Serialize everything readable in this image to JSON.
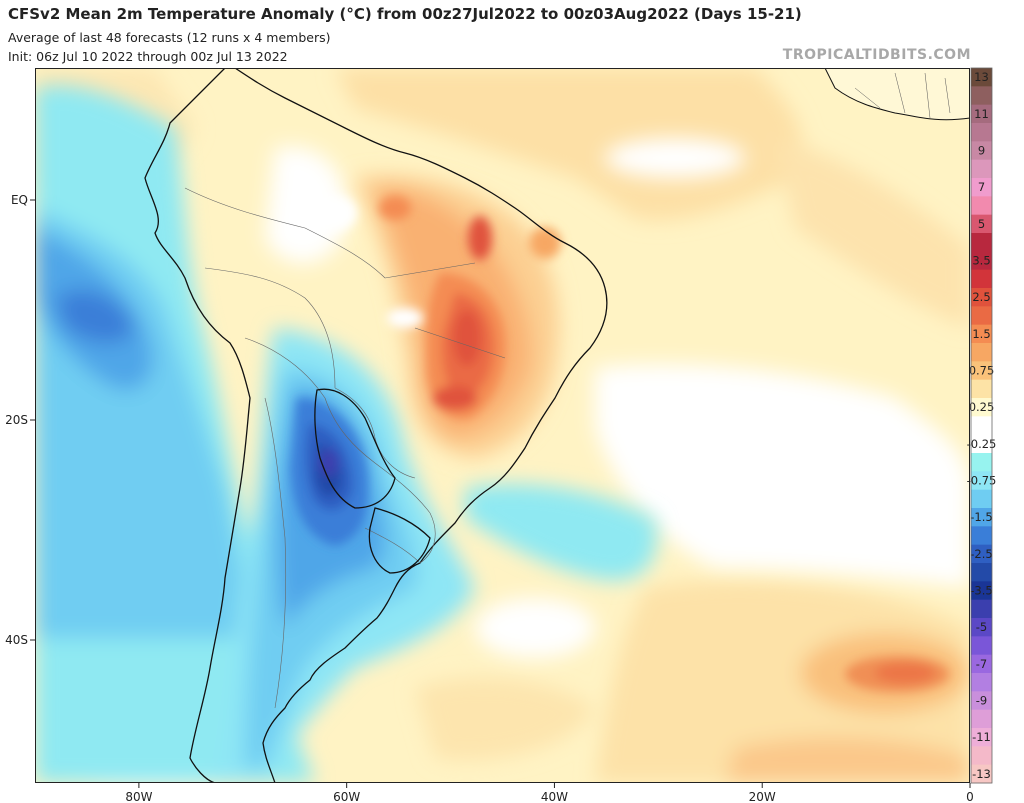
{
  "header": {
    "title": "CFSv2 Mean 2m Temperature Anomaly (°C) from 00z27Jul2022 to 00z03Aug2022 (Days 15-21)",
    "subtitle1": "Average of last 48 forecasts (12 runs x 4 members)",
    "subtitle2": "Init: 06z Jul 10 2022 through 00z Jul 13 2022",
    "brand": "TROPICALTIDBITS.COM"
  },
  "map": {
    "lon_range": [
      -90,
      0
    ],
    "lat_range": [
      12,
      -53
    ],
    "lat_ticks": [
      {
        "lat": 0,
        "label": "EQ"
      },
      {
        "lat": -20,
        "label": "20S"
      },
      {
        "lat": -40,
        "label": "40S"
      }
    ],
    "lon_ticks": [
      {
        "lon": -80,
        "label": "80W"
      },
      {
        "lon": -60,
        "label": "60W"
      },
      {
        "lon": -40,
        "label": "40W"
      },
      {
        "lon": -20,
        "label": "20W"
      },
      {
        "lon": 0,
        "label": "0"
      }
    ]
  },
  "colorbar": {
    "levels": [
      {
        "label": "13",
        "color": "#6b4a3a"
      },
      {
        "label": "",
        "color": "#8e5f5f"
      },
      {
        "label": "11",
        "color": "#a56b7e"
      },
      {
        "label": "",
        "color": "#b77891"
      },
      {
        "label": "9",
        "color": "#c888a4"
      },
      {
        "label": "",
        "color": "#dc97bb"
      },
      {
        "label": "7",
        "color": "#f09ccd"
      },
      {
        "label": "",
        "color": "#f28aae"
      },
      {
        "label": "5",
        "color": "#d9576f"
      },
      {
        "label": "",
        "color": "#b8283e"
      },
      {
        "label": "3.5",
        "color": "#b8283e"
      },
      {
        "label": "",
        "color": "#d2343a"
      },
      {
        "label": "2.5",
        "color": "#e0523c"
      },
      {
        "label": "",
        "color": "#ea6a44"
      },
      {
        "label": "1.5",
        "color": "#f48c52"
      },
      {
        "label": "",
        "color": "#f7a763"
      },
      {
        "label": "0.75",
        "color": "#fac27a"
      },
      {
        "label": "",
        "color": "#fde3a6"
      },
      {
        "label": "0.25",
        "color": "#fffad0"
      },
      {
        "label": "",
        "color": "#ffffff"
      },
      {
        "label": "-0.25",
        "color": "#ffffff"
      },
      {
        "label": "",
        "color": "#97f3ef"
      },
      {
        "label": "-0.75",
        "color": "#8ee6f5"
      },
      {
        "label": "",
        "color": "#6fcdf2"
      },
      {
        "label": "-1.5",
        "color": "#50a6e8"
      },
      {
        "label": "",
        "color": "#3a7ed8"
      },
      {
        "label": "-2.5",
        "color": "#2f5fc2"
      },
      {
        "label": "",
        "color": "#234aa8"
      },
      {
        "label": "-3.5",
        "color": "#1a3596"
      },
      {
        "label": "",
        "color": "#3b3fae"
      },
      {
        "label": "-5",
        "color": "#5b48c6"
      },
      {
        "label": "",
        "color": "#7a56d8"
      },
      {
        "label": "-7",
        "color": "#9a68e0"
      },
      {
        "label": "",
        "color": "#b27fe2"
      },
      {
        "label": "-9",
        "color": "#c98fdc"
      },
      {
        "label": "",
        "color": "#de9ed8"
      },
      {
        "label": "-11",
        "color": "#eeaed8"
      },
      {
        "label": "",
        "color": "#f4b9c9"
      },
      {
        "label": "-13",
        "color": "#f7c7c4"
      }
    ]
  },
  "colors": {
    "ocean_base": "#fffad0",
    "coast": "#111111",
    "border": "#555555"
  }
}
